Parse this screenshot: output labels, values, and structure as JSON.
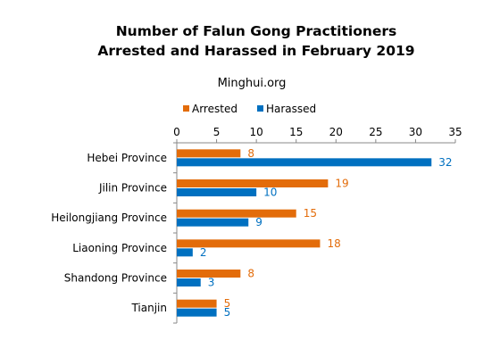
{
  "chart_data": {
    "type": "bar",
    "orientation": "horizontal",
    "title_lines": [
      "Number of Falun Gong Practitioners",
      "Arrested and Harassed in February 2019"
    ],
    "subtitle": "Minghui.org",
    "categories": [
      "Hebei Province",
      "Jilin Province",
      "Heilongjiang Province",
      "Liaoning Province",
      "Shandong Province",
      "Tianjin"
    ],
    "series": [
      {
        "name": "Arrested",
        "values": [
          8,
          19,
          15,
          18,
          8,
          5
        ],
        "color": "#e36c0a"
      },
      {
        "name": "Harassed",
        "values": [
          32,
          10,
          9,
          2,
          3,
          5
        ],
        "color": "#0070c0"
      }
    ],
    "xlim": [
      0,
      35
    ],
    "ticks": [
      "0",
      "5",
      "10",
      "15",
      "20",
      "25",
      "30",
      "35"
    ],
    "legend_position": "top",
    "axis_position": "top",
    "grid": false,
    "data_labels": true
  }
}
